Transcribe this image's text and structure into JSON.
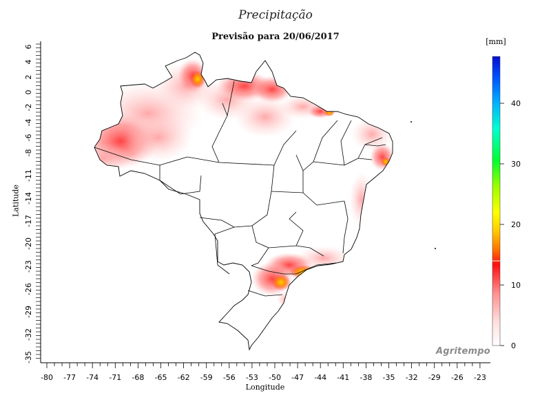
{
  "map": {
    "title": "Precipitação",
    "subtitle": "Previsão para 20/06/2017",
    "xlabel": "Longitude",
    "ylabel": "Latitude",
    "x_ticks": [
      "-80",
      "-77",
      "-74",
      "-71",
      "-68",
      "-65",
      "-62",
      "-59",
      "-56",
      "-53",
      "-50",
      "-47",
      "-44",
      "-41",
      "-38",
      "-35",
      "-32",
      "-29",
      "-26",
      "-23"
    ],
    "y_ticks": [
      "6",
      "4",
      "2",
      "0",
      "-2",
      "-4",
      "-6",
      "-8",
      "-11",
      "-14",
      "-17",
      "-20",
      "-23",
      "-26",
      "-29",
      "-32",
      "-35"
    ],
    "legend": {
      "unit": "[mm]",
      "ticks": [
        "0",
        "10",
        "20",
        "30",
        "40"
      ],
      "colors": [
        "#ffffff",
        "#ffd9d9",
        "#ff8080",
        "#ff2020",
        "#ff8c00",
        "#ffff00",
        "#7fff00",
        "#00ff00",
        "#00ffff",
        "#0080ff",
        "#0000ff"
      ]
    },
    "watermark": "Agritempo"
  }
}
